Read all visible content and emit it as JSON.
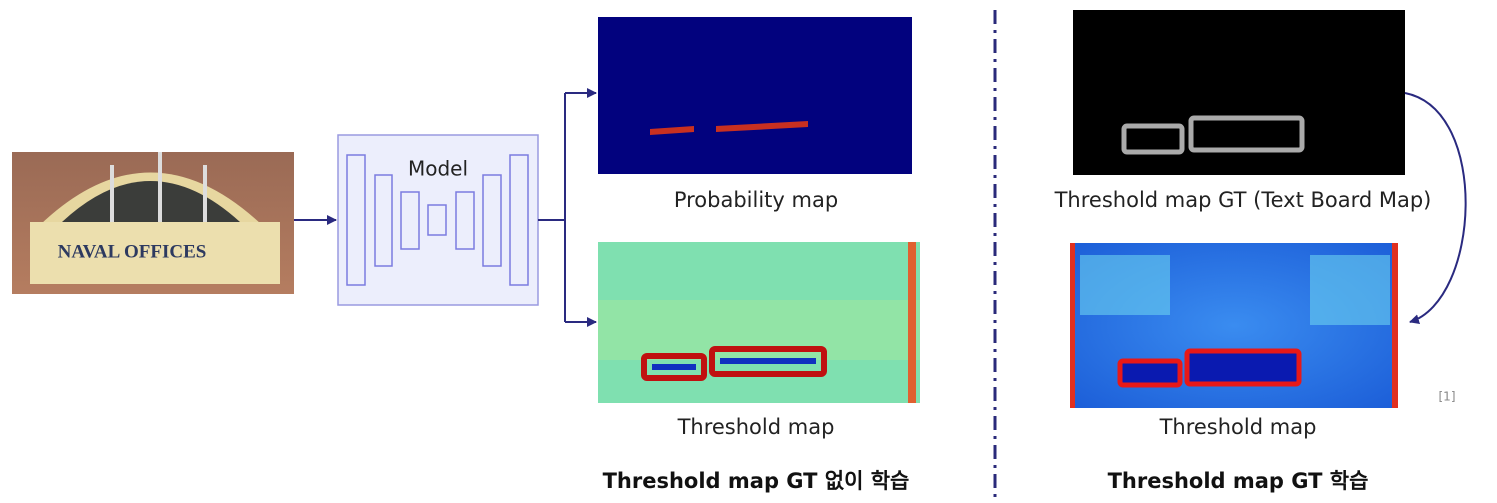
{
  "input_image": {
    "sign_text": "NAVAL OFFICES"
  },
  "model": {
    "label": "Model"
  },
  "left_panel": {
    "probability_map": {
      "caption": "Probability map"
    },
    "threshold_map": {
      "caption": "Threshold map"
    },
    "title": "Threshold map GT 없이 학습"
  },
  "right_panel": {
    "threshold_gt": {
      "caption": "Threshold map GT (Text Board Map)"
    },
    "threshold_map": {
      "caption": "Threshold map"
    },
    "reference": "[1]",
    "title": "Threshold map GT 학습"
  }
}
